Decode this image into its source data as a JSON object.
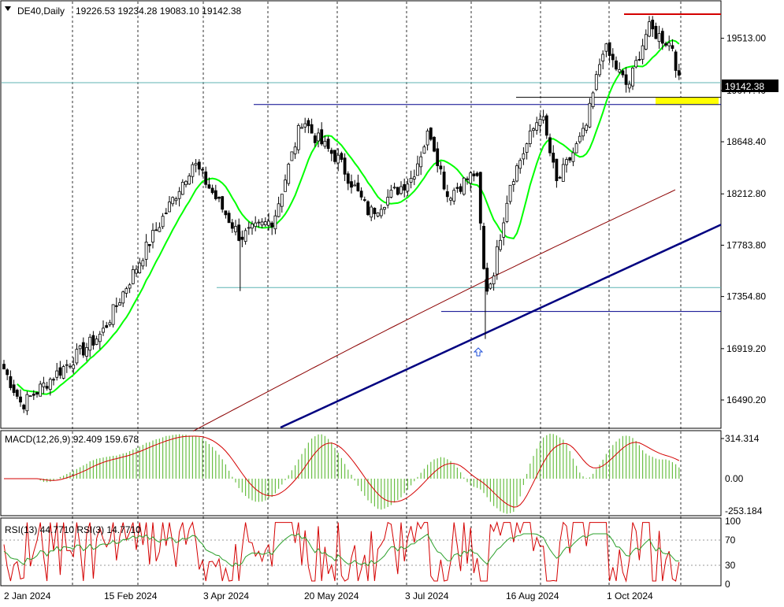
{
  "header": {
    "symbol": "DE40,Daily",
    "ohlc": "19226.53 19234.28 19083.10 19142.38"
  },
  "colors": {
    "background": "#ffffff",
    "candle": "#000000",
    "ma_fast": "#00ff00",
    "ma_slow": "#8b0000",
    "trendline": "#000080",
    "hline_blue": "#00008b",
    "hline_teal": "#5fb3b3",
    "resistance": "#d40000",
    "zone": "#ffff00",
    "macd_hist": "#6abf45",
    "macd_signal": "#d40000",
    "rsi_main": "#d40000",
    "rsi_signal": "#2ca02c",
    "grid_v": "#000000"
  },
  "chart_data": {
    "type": "candlestick",
    "title": "DE40,Daily",
    "ylim": [
      16260,
      19820
    ],
    "price_ticks": [
      "19513.00",
      "19077.40",
      "18648.40",
      "18212.80",
      "17783.80",
      "17354.80",
      "16919.20",
      "16490.20"
    ],
    "current_price": "19142.38",
    "date_ticks": [
      "2 Jan 2024",
      "15 Feb 2024",
      "3 Apr 2024",
      "20 May 2024",
      "3 Jul 2024",
      "16 Aug 2024",
      "1 Oct 2024"
    ],
    "key_points": [
      {
        "date": "2 Jan 2024",
        "close": 16750
      },
      {
        "date": "10 Jan 2024",
        "close": 16450
      },
      {
        "date": "15 Feb 2024",
        "close": 17050
      },
      {
        "date": "7 Mar 2024",
        "close": 17800
      },
      {
        "date": "27 Mar 2024",
        "close": 18480
      },
      {
        "date": "17 Apr 2024",
        "close": 17850
      },
      {
        "date": "2 May 2024",
        "close": 18000
      },
      {
        "date": "15 May 2024",
        "close": 18850
      },
      {
        "date": "20 May 2024",
        "close": 18700
      },
      {
        "date": "31 May 2024",
        "close": 18500
      },
      {
        "date": "14 Jun 2024",
        "close": 18050
      },
      {
        "date": "3 Jul 2024",
        "close": 18350
      },
      {
        "date": "11 Jul 2024",
        "close": 18750
      },
      {
        "date": "19 Jul 2024",
        "close": 18200
      },
      {
        "date": "1 Aug 2024",
        "close": 18400
      },
      {
        "date": "5 Aug 2024",
        "close": 17400
      },
      {
        "date": "8 Aug 2024",
        "close": 17500
      },
      {
        "date": "16 Aug 2024",
        "close": 18300
      },
      {
        "date": "30 Aug 2024",
        "close": 18900
      },
      {
        "date": "6 Sep 2024",
        "close": 18300
      },
      {
        "date": "19 Sep 2024",
        "close": 18750
      },
      {
        "date": "27 Sep 2024",
        "close": 19450
      },
      {
        "date": "8 Oct 2024",
        "close": 19100
      },
      {
        "date": "17 Oct 2024",
        "close": 19600
      },
      {
        "date": "28 Oct 2024",
        "close": 19450
      },
      {
        "date": "31 Oct 2024",
        "close": 19142
      }
    ],
    "macd": {
      "label": "MACD(12,26,9) 92.409 159.678",
      "ticks": [
        "314.314",
        "0.00",
        "-253.184"
      ]
    },
    "rsi": {
      "label": "RSI(13) 44.7710  RSI(3) 14.7710",
      "ticks": [
        "100",
        "70",
        "30",
        "0"
      ]
    },
    "grid": "vertical dotted",
    "legend": "none"
  }
}
